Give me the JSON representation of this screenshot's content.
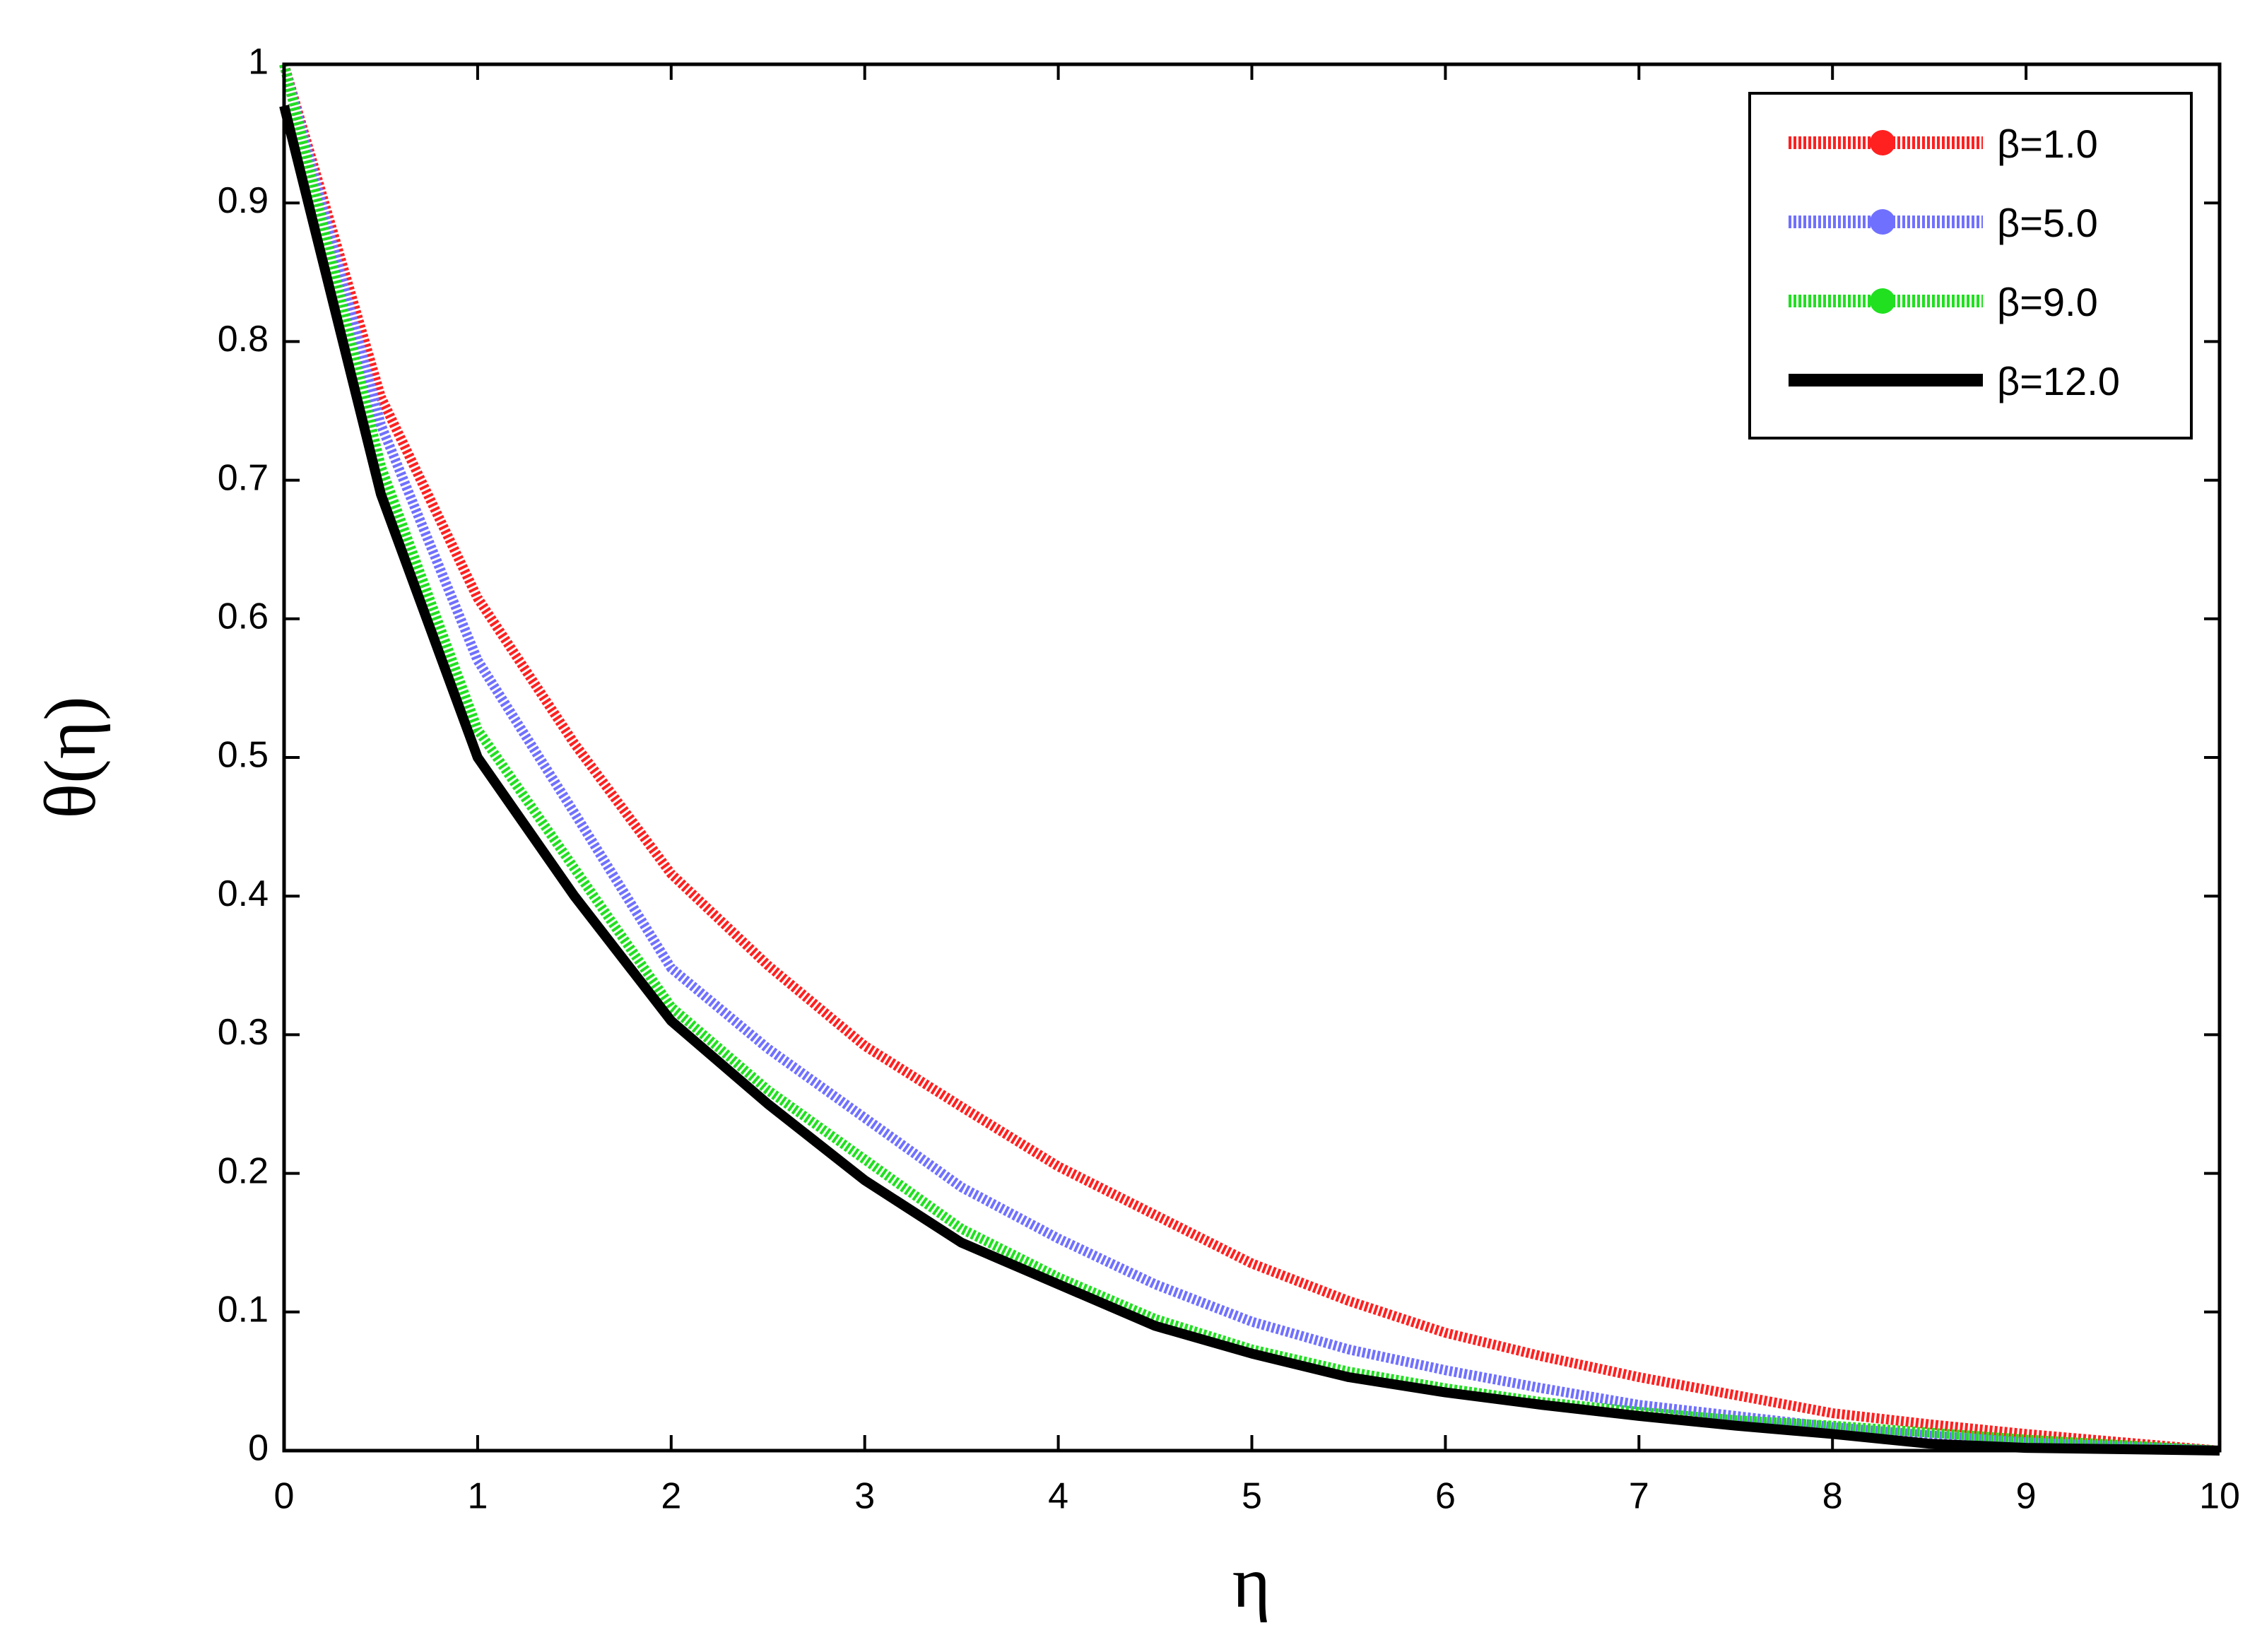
{
  "chart_data": {
    "type": "line",
    "xlabel": "η",
    "ylabel": "θ(η)",
    "x": [
      0,
      0.5,
      1,
      1.5,
      2,
      2.5,
      3,
      3.5,
      4,
      4.5,
      5,
      5.5,
      6,
      6.5,
      7,
      7.5,
      8,
      8.5,
      9,
      9.5,
      10
    ],
    "series": [
      {
        "name": "β=1.0",
        "color": "#ff2020",
        "marker": "circle",
        "dash": true,
        "values": [
          1,
          0.76,
          0.615,
          0.51,
          0.416,
          0.35,
          0.292,
          0.248,
          0.205,
          0.17,
          0.135,
          0.108,
          0.085,
          0.068,
          0.053,
          0.04,
          0.027,
          0.019,
          0.012,
          0.006,
          0
        ]
      },
      {
        "name": "β=5.0",
        "color": "#7070ff",
        "marker": "circle",
        "dash": true,
        "values": [
          1,
          0.74,
          0.57,
          0.46,
          0.348,
          0.29,
          0.24,
          0.19,
          0.153,
          0.12,
          0.093,
          0.073,
          0.058,
          0.045,
          0.033,
          0.025,
          0.017,
          0.011,
          0.006,
          0.003,
          0
        ]
      },
      {
        "name": "β=9.0",
        "color": "#20e020",
        "marker": "circle",
        "dash": true,
        "values": [
          1,
          0.71,
          0.52,
          0.42,
          0.32,
          0.26,
          0.21,
          0.16,
          0.125,
          0.095,
          0.073,
          0.057,
          0.045,
          0.035,
          0.028,
          0.022,
          0.018,
          0.013,
          0.008,
          0.004,
          0
        ]
      },
      {
        "name": "β=12.0",
        "color": "#000000",
        "dash": false,
        "values": [
          0.97,
          0.69,
          0.5,
          0.4,
          0.31,
          0.25,
          0.195,
          0.15,
          0.12,
          0.09,
          0.07,
          0.053,
          0.042,
          0.033,
          0.025,
          0.018,
          0.012,
          0.005,
          0.002,
          0.001,
          0
        ]
      }
    ],
    "xlim": [
      0,
      10
    ],
    "ylim": [
      0,
      1
    ],
    "xticks": [
      0,
      1,
      2,
      3,
      4,
      5,
      6,
      7,
      8,
      9,
      10
    ],
    "yticks": [
      0,
      0.1,
      0.2,
      0.3,
      0.4,
      0.5,
      0.6,
      0.7,
      0.8,
      0.9,
      1
    ],
    "legend": "upper right",
    "grid": false
  }
}
